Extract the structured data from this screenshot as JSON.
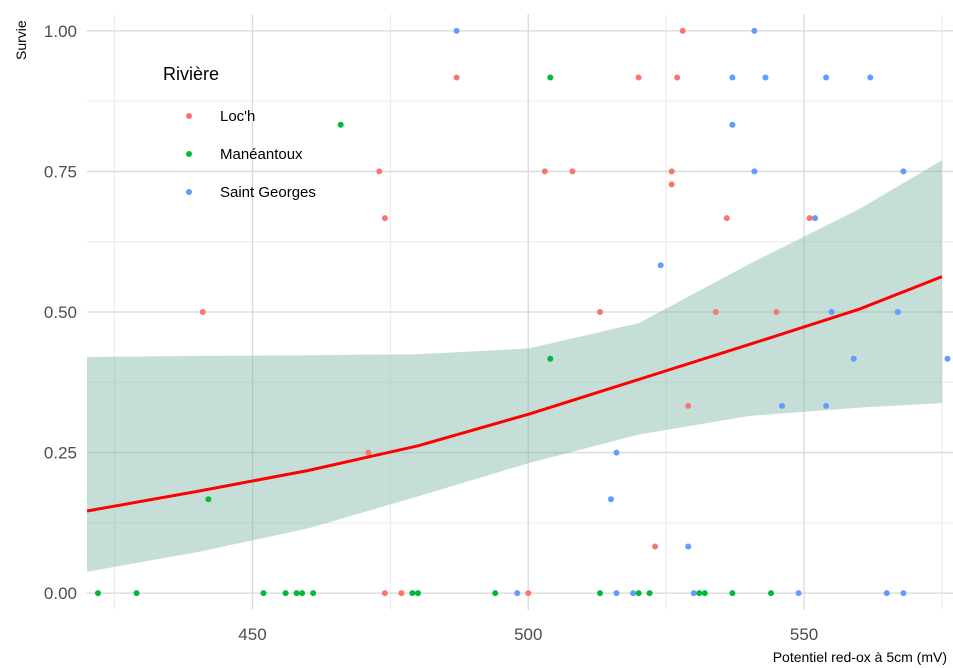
{
  "chart_data": {
    "type": "scatter",
    "title": "",
    "xlabel": "Potentiel red-ox à 5cm (mV)",
    "ylabel": "Survie",
    "xlim": [
      420,
      577
    ],
    "ylim": [
      -0.03,
      1.03
    ],
    "x_ticks": [
      450,
      500,
      550
    ],
    "y_ticks": [
      0.0,
      0.25,
      0.5,
      0.75,
      1.0
    ],
    "x_tick_labels": [
      "450",
      "500",
      "550"
    ],
    "y_tick_labels": [
      "0.00",
      "0.25",
      "0.50",
      "0.75",
      "1.00"
    ],
    "grid": true,
    "legend": {
      "title": "Rivière",
      "position": "top-left",
      "entries": [
        "Loc'h",
        "Manéantoux",
        "Saint Georges"
      ]
    },
    "series": [
      {
        "name": "Loc'h",
        "color": "#F8766D",
        "points": [
          [
            441,
            0.5
          ],
          [
            471,
            0.25
          ],
          [
            473,
            0.75
          ],
          [
            474,
            0.667
          ],
          [
            474,
            0.0
          ],
          [
            477,
            0.0
          ],
          [
            487,
            0.917
          ],
          [
            500,
            0.0
          ],
          [
            503,
            0.75
          ],
          [
            508,
            0.75
          ],
          [
            513,
            0.5
          ],
          [
            520,
            0.917
          ],
          [
            523,
            0.083
          ],
          [
            526,
            0.75
          ],
          [
            526,
            0.727
          ],
          [
            527,
            0.917
          ],
          [
            528,
            1.0
          ],
          [
            529,
            0.333
          ],
          [
            534,
            0.5
          ],
          [
            536,
            0.667
          ],
          [
            545,
            0.5
          ],
          [
            551,
            0.667
          ]
        ]
      },
      {
        "name": "Manéantoux",
        "color": "#00BA38",
        "points": [
          [
            422,
            0.0
          ],
          [
            429,
            0.0
          ],
          [
            442,
            0.167
          ],
          [
            452,
            0.0
          ],
          [
            456,
            0.0
          ],
          [
            458,
            0.0
          ],
          [
            459,
            0.0
          ],
          [
            461,
            0.0
          ],
          [
            466,
            0.833
          ],
          [
            479,
            0.0
          ],
          [
            480,
            0.0
          ],
          [
            494,
            0.0
          ],
          [
            504,
            0.917
          ],
          [
            504,
            0.417
          ],
          [
            513,
            0.0
          ],
          [
            520,
            0.0
          ],
          [
            522,
            0.0
          ],
          [
            531,
            0.0
          ],
          [
            532,
            0.0
          ],
          [
            537,
            0.0
          ],
          [
            544,
            0.0
          ]
        ]
      },
      {
        "name": "Saint Georges",
        "color": "#619CFF",
        "points": [
          [
            487,
            1.0
          ],
          [
            498,
            0.0
          ],
          [
            515,
            0.167
          ],
          [
            516,
            0.25
          ],
          [
            516,
            0.0
          ],
          [
            519,
            0.0
          ],
          [
            524,
            0.583
          ],
          [
            529,
            0.083
          ],
          [
            530,
            0.0
          ],
          [
            537,
            0.917
          ],
          [
            537,
            0.833
          ],
          [
            541,
            1.0
          ],
          [
            541,
            0.75
          ],
          [
            543,
            0.917
          ],
          [
            546,
            0.333
          ],
          [
            549,
            0.0
          ],
          [
            552,
            0.667
          ],
          [
            554,
            0.917
          ],
          [
            554,
            0.333
          ],
          [
            555,
            0.5
          ],
          [
            559,
            0.417
          ],
          [
            562,
            0.917
          ],
          [
            565,
            0.0
          ],
          [
            567,
            0.5
          ],
          [
            568,
            0.75
          ],
          [
            568,
            0.0
          ],
          [
            576,
            0.417
          ]
        ]
      }
    ],
    "fit": {
      "color": "#FF0000",
      "band_color": "#7FB9A8",
      "x": [
        420,
        440,
        460,
        480,
        500,
        520,
        540,
        560,
        575
      ],
      "y": [
        0.146,
        0.181,
        0.218,
        0.262,
        0.318,
        0.38,
        0.442,
        0.505,
        0.563
      ],
      "lower": [
        0.038,
        0.073,
        0.115,
        0.172,
        0.231,
        0.282,
        0.315,
        0.33,
        0.338
      ],
      "upper": [
        0.42,
        0.422,
        0.423,
        0.425,
        0.435,
        0.48,
        0.585,
        0.683,
        0.77
      ]
    }
  }
}
